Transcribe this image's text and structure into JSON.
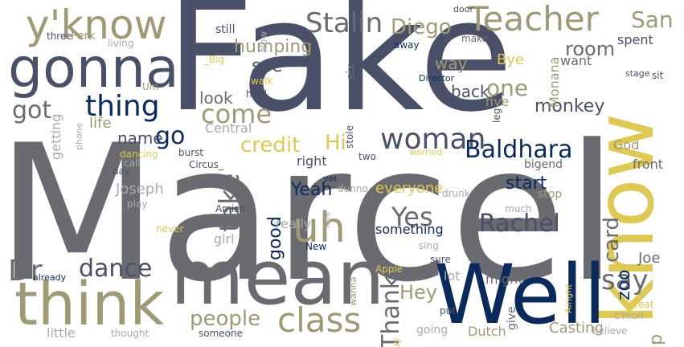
{
  "palette": {
    "slate": "#4a5068",
    "gray": "#6a6b70",
    "navy": "#0b2a5c",
    "mustard": "#ddc953",
    "khaki": "#9f9a76",
    "light_gray": "#a8a9ad",
    "blue_gray": "#676c80"
  },
  "words": [
    {
      "id": "marcel",
      "text": "Marcel"
    },
    {
      "id": "fake",
      "text": "Fake"
    },
    {
      "id": "know",
      "text": "know"
    },
    {
      "id": "well",
      "text": "Well"
    },
    {
      "id": "mean",
      "text": "mean"
    },
    {
      "id": "think",
      "text": "think"
    },
    {
      "id": "gonna",
      "text": "gonna"
    },
    {
      "id": "yknow",
      "text": "y'know"
    },
    {
      "id": "teacher",
      "text": "Teacher"
    },
    {
      "id": "stalin",
      "text": "Stalin"
    },
    {
      "id": "diego",
      "text": "Diego"
    },
    {
      "id": "san",
      "text": "San"
    },
    {
      "id": "thing",
      "text": "thing"
    },
    {
      "id": "got",
      "text": "got"
    },
    {
      "id": "one",
      "text": "one"
    },
    {
      "id": "room",
      "text": "room"
    },
    {
      "id": "come",
      "text": "come"
    },
    {
      "id": "woman",
      "text": "woman"
    },
    {
      "id": "baldhara",
      "text": "Baldhara"
    },
    {
      "id": "credit",
      "text": "credit"
    },
    {
      "id": "hi",
      "text": "Hi"
    },
    {
      "id": "take",
      "text": "take"
    },
    {
      "id": "uh",
      "text": "uh"
    },
    {
      "id": "dr",
      "text": "Dr"
    },
    {
      "id": "dance",
      "text": "dance"
    },
    {
      "id": "class",
      "text": "class"
    },
    {
      "id": "people",
      "text": "people"
    },
    {
      "id": "say",
      "text": "say"
    },
    {
      "id": "rachel",
      "text": "Rachel"
    },
    {
      "id": "yes",
      "text": "Yes"
    },
    {
      "id": "yeah",
      "text": "Yeah"
    },
    {
      "id": "card",
      "text": "card"
    },
    {
      "id": "zoo",
      "text": "zoo"
    },
    {
      "id": "monkey",
      "text": "monkey"
    },
    {
      "id": "thank",
      "text": "Thank"
    },
    {
      "id": "hey",
      "text": "Hey"
    },
    {
      "id": "start",
      "text": "start"
    },
    {
      "id": "go",
      "text": "go"
    },
    {
      "id": "humping",
      "text": "humping"
    },
    {
      "id": "see",
      "text": "see"
    },
    {
      "id": "way",
      "text": "way"
    },
    {
      "id": "back",
      "text": "back"
    },
    {
      "id": "look",
      "text": "look"
    },
    {
      "id": "name",
      "text": "name"
    },
    {
      "id": "joseph",
      "text": "Joseph"
    },
    {
      "id": "everyone",
      "text": "everyone"
    },
    {
      "id": "good",
      "text": "good"
    },
    {
      "id": "tap",
      "text": "tap"
    },
    {
      "id": "joe",
      "text": "Joe"
    },
    {
      "id": "life",
      "text": "life"
    },
    {
      "id": "bye",
      "text": "Bye"
    },
    {
      "id": "monana",
      "text": "Monana"
    },
    {
      "id": "spent",
      "text": "spent"
    },
    {
      "id": "want",
      "text": "want"
    },
    {
      "id": "front",
      "text": "front"
    },
    {
      "id": "god",
      "text": "God"
    },
    {
      "id": "girl",
      "text": "girl"
    },
    {
      "id": "little",
      "text": "little"
    },
    {
      "id": "something",
      "text": "something"
    },
    {
      "id": "casting",
      "text": "Casting"
    },
    {
      "id": "dutch",
      "text": "Dutch"
    },
    {
      "id": "going",
      "text": "going"
    },
    {
      "id": "might",
      "text": "might"
    },
    {
      "id": "lot",
      "text": "lot"
    },
    {
      "id": "really",
      "text": "really"
    },
    {
      "id": "right",
      "text": "right"
    },
    {
      "id": "central",
      "text": "Central"
    },
    {
      "id": "getting",
      "text": "getting"
    },
    {
      "id": "five",
      "text": "five"
    },
    {
      "id": "director",
      "text": "Director"
    },
    {
      "id": "perk",
      "text": "Perk"
    },
    {
      "id": "three",
      "text": "three"
    },
    {
      "id": "living",
      "text": "living"
    },
    {
      "id": "big_",
      "text": "_Big"
    },
    {
      "id": "still",
      "text": "still"
    },
    {
      "id": "now",
      "text": "Now"
    },
    {
      "id": "six",
      "text": "six"
    },
    {
      "id": "door",
      "text": "door"
    },
    {
      "id": "away",
      "text": "away"
    },
    {
      "id": "make",
      "text": "make"
    },
    {
      "id": "um",
      "text": "Um"
    },
    {
      "id": "walk",
      "text": "walk"
    },
    {
      "id": "hold",
      "text": "hold"
    },
    {
      "id": "phone",
      "text": "phone"
    },
    {
      "id": "dancing",
      "text": "dancing"
    },
    {
      "id": "call",
      "text": "call"
    },
    {
      "id": "day",
      "text": "day"
    },
    {
      "id": "burst",
      "text": "burst"
    },
    {
      "id": "circus",
      "text": "Circus_"
    },
    {
      "id": "two",
      "text": "two"
    },
    {
      "id": "stole",
      "text": "stole"
    },
    {
      "id": "worried",
      "text": "worried"
    },
    {
      "id": "bigend",
      "text": "bigend"
    },
    {
      "id": "stop",
      "text": "stop"
    },
    {
      "id": "play",
      "text": "play"
    },
    {
      "id": "amish",
      "text": "Amish"
    },
    {
      "id": "vet",
      "text": "vet"
    },
    {
      "id": "late",
      "text": "late"
    },
    {
      "id": "dunno",
      "text": "dunno"
    },
    {
      "id": "drunk",
      "text": "drunk"
    },
    {
      "id": "much",
      "text": "much"
    },
    {
      "id": "never",
      "text": "never"
    },
    {
      "id": "new",
      "text": "New"
    },
    {
      "id": "sing",
      "text": "sing"
    },
    {
      "id": "already",
      "text": "already"
    },
    {
      "id": "wanna",
      "text": "wanna"
    },
    {
      "id": "sure",
      "text": "sure"
    },
    {
      "id": "apple",
      "text": "Apple"
    },
    {
      "id": "guy",
      "text": "guy"
    },
    {
      "id": "put",
      "text": "put"
    },
    {
      "id": "give",
      "text": "give"
    },
    {
      "id": "alright",
      "text": "Alright"
    },
    {
      "id": "great",
      "text": "Great"
    },
    {
      "id": "cmon",
      "text": "c'mon"
    },
    {
      "id": "believe",
      "text": "believe"
    },
    {
      "id": "thought",
      "text": "thought"
    },
    {
      "id": "someone",
      "text": "someone"
    },
    {
      "id": "leg",
      "text": "leg"
    },
    {
      "id": "stage",
      "text": "stage"
    },
    {
      "id": "sit",
      "text": "sit"
    }
  ]
}
